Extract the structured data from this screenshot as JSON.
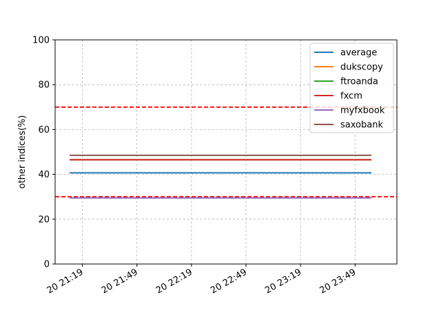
{
  "chart_data": {
    "type": "line",
    "ylabel": "other indices(%)",
    "xlabel": "",
    "ylim": [
      0,
      100
    ],
    "yticks": [
      0,
      20,
      40,
      60,
      80,
      100
    ],
    "xlim": [
      "20 21:04",
      "20 24:12"
    ],
    "xticks": [
      "20 21:19",
      "20 21:49",
      "20 22:19",
      "20 22:49",
      "20 23:19",
      "20 23:49"
    ],
    "grid": true,
    "legend_position": "top-right",
    "x": [
      "20 21:12",
      "20 23:58"
    ],
    "series": [
      {
        "name": "average",
        "color": "#1f77b4",
        "values": [
          40.7,
          40.7
        ]
      },
      {
        "name": "dukscopy",
        "color": "#ff7f0e",
        "values": [
          46.5,
          46.5
        ]
      },
      {
        "name": "ftroanda",
        "color": "#2ca02c",
        "values": [
          46.5,
          46.5
        ]
      },
      {
        "name": "fxcm",
        "color": "#d62728",
        "values": [
          46.5,
          46.5
        ]
      },
      {
        "name": "myfxbook",
        "color": "#9467bd",
        "values": [
          29.5,
          29.5
        ]
      },
      {
        "name": "saxobank",
        "color": "#8c564b",
        "values": [
          48.5,
          48.5
        ]
      }
    ],
    "reference_lines": [
      {
        "y": 70,
        "color": "#ff0000",
        "style": "dashed"
      },
      {
        "y": 30,
        "color": "#ff0000",
        "style": "dashed"
      }
    ]
  }
}
